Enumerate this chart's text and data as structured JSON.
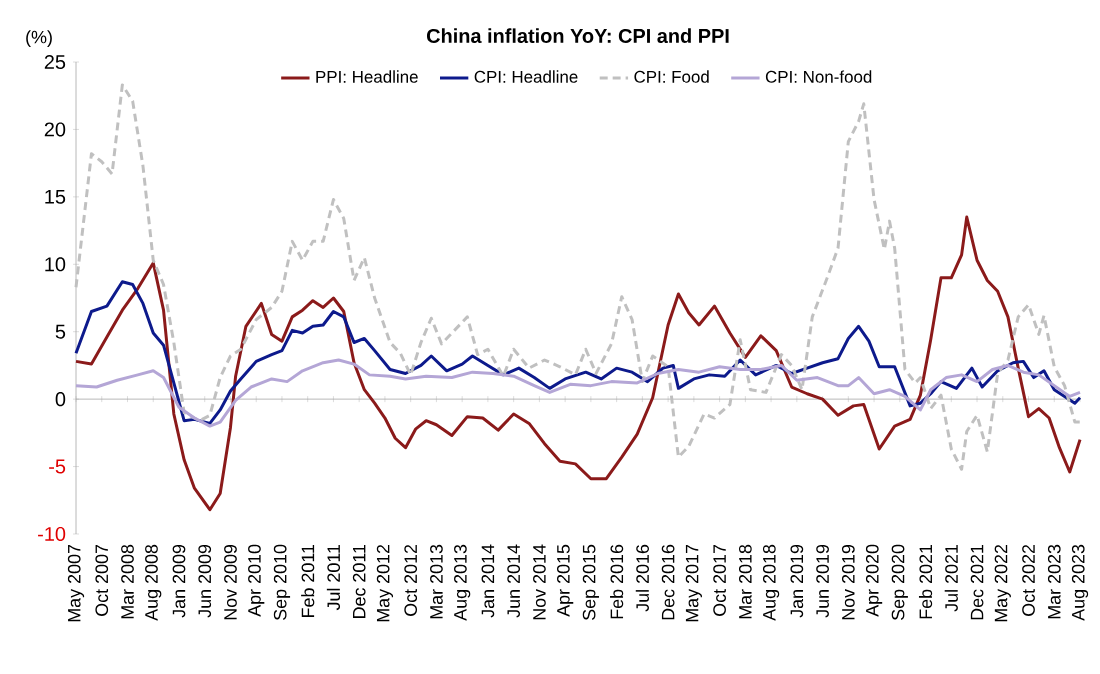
{
  "chart_data": {
    "type": "line",
    "title": "China inflation YoY: CPI and PPI",
    "ylabel": "(%)",
    "xlim": [
      "2007-05",
      "2023-08"
    ],
    "xticks": [
      {
        "value": "2007-05",
        "label": "May 2007"
      },
      {
        "value": "2007-10",
        "label": "Oct 2007"
      },
      {
        "value": "2008-03",
        "label": "Mar 2008"
      },
      {
        "value": "2008-08",
        "label": "Aug 2008"
      },
      {
        "value": "2009-01",
        "label": "Jan 2009"
      },
      {
        "value": "2009-06",
        "label": "Jun 2009"
      },
      {
        "value": "2009-11",
        "label": "Nov 2009"
      },
      {
        "value": "2010-04",
        "label": "Apr 2010"
      },
      {
        "value": "2010-09",
        "label": "Sep 2010"
      },
      {
        "value": "2011-02",
        "label": "Feb 2011"
      },
      {
        "value": "2011-07",
        "label": "Jul 2011"
      },
      {
        "value": "2011-12",
        "label": "Dec 2011"
      },
      {
        "value": "2012-05",
        "label": "May 2012"
      },
      {
        "value": "2012-10",
        "label": "Oct 2012"
      },
      {
        "value": "2013-03",
        "label": "Mar 2013"
      },
      {
        "value": "2013-08",
        "label": "Aug 2013"
      },
      {
        "value": "2014-01",
        "label": "Jan 2014"
      },
      {
        "value": "2014-06",
        "label": "Jun 2014"
      },
      {
        "value": "2014-11",
        "label": "Nov 2014"
      },
      {
        "value": "2015-04",
        "label": "Apr 2015"
      },
      {
        "value": "2015-09",
        "label": "Sep 2015"
      },
      {
        "value": "2016-02",
        "label": "Feb 2016"
      },
      {
        "value": "2016-07",
        "label": "Jul 2016"
      },
      {
        "value": "2016-12",
        "label": "Dec 2016"
      },
      {
        "value": "2017-05",
        "label": "May 2017"
      },
      {
        "value": "2017-10",
        "label": "Oct 2017"
      },
      {
        "value": "2018-03",
        "label": "Mar 2018"
      },
      {
        "value": "2018-08",
        "label": "Aug 2018"
      },
      {
        "value": "2019-01",
        "label": "Jan 2019"
      },
      {
        "value": "2019-06",
        "label": "Jun 2019"
      },
      {
        "value": "2019-11",
        "label": "Nov 2019"
      },
      {
        "value": "2020-04",
        "label": "Apr 2020"
      },
      {
        "value": "2020-09",
        "label": "Sep 2020"
      },
      {
        "value": "2021-02",
        "label": "Feb 2021"
      },
      {
        "value": "2021-07",
        "label": "Jul 2021"
      },
      {
        "value": "2021-12",
        "label": "Dec 2021"
      },
      {
        "value": "2022-05",
        "label": "May 2022"
      },
      {
        "value": "2022-10",
        "label": "Oct 2022"
      },
      {
        "value": "2023-03",
        "label": "Mar 2023"
      },
      {
        "value": "2023-08",
        "label": "Aug 2023"
      }
    ],
    "ylim": [
      -10,
      25
    ],
    "yticks": [
      -10,
      -5,
      0,
      5,
      10,
      15,
      20,
      25
    ],
    "legend": "top",
    "series": [
      {
        "name": "PPI: Headline",
        "color": "#8b1a1a",
        "x": [
          "2007-05",
          "2007-08",
          "2007-11",
          "2008-02",
          "2008-05",
          "2008-08",
          "2008-10",
          "2008-12",
          "2009-02",
          "2009-04",
          "2009-07",
          "2009-09",
          "2009-11",
          "2009-12",
          "2010-02",
          "2010-05",
          "2010-07",
          "2010-09",
          "2010-11",
          "2011-01",
          "2011-03",
          "2011-05",
          "2011-07",
          "2011-09",
          "2011-11",
          "2012-01",
          "2012-03",
          "2012-05",
          "2012-07",
          "2012-09",
          "2012-11",
          "2013-01",
          "2013-03",
          "2013-06",
          "2013-09",
          "2013-12",
          "2014-03",
          "2014-06",
          "2014-09",
          "2014-12",
          "2015-03",
          "2015-06",
          "2015-09",
          "2015-12",
          "2016-03",
          "2016-06",
          "2016-09",
          "2016-12",
          "2017-02",
          "2017-04",
          "2017-06",
          "2017-09",
          "2017-12",
          "2018-03",
          "2018-06",
          "2018-09",
          "2018-12",
          "2019-03",
          "2019-06",
          "2019-09",
          "2019-12",
          "2020-02",
          "2020-05",
          "2020-08",
          "2020-11",
          "2021-01",
          "2021-03",
          "2021-05",
          "2021-07",
          "2021-09",
          "2021-10",
          "2021-12",
          "2022-02",
          "2022-04",
          "2022-06",
          "2022-08",
          "2022-10",
          "2022-12",
          "2023-02",
          "2023-04",
          "2023-06",
          "2023-08"
        ],
        "values": [
          2.8,
          2.6,
          4.6,
          6.6,
          8.2,
          10.1,
          6.6,
          -1.1,
          -4.5,
          -6.6,
          -8.2,
          -7.0,
          -2.1,
          1.7,
          5.4,
          7.1,
          4.8,
          4.3,
          6.1,
          6.6,
          7.3,
          6.8,
          7.5,
          6.5,
          2.7,
          0.7,
          -0.3,
          -1.4,
          -2.9,
          -3.6,
          -2.2,
          -1.6,
          -1.9,
          -2.7,
          -1.3,
          -1.4,
          -2.3,
          -1.1,
          -1.8,
          -3.3,
          -4.6,
          -4.8,
          -5.9,
          -5.9,
          -4.3,
          -2.6,
          0.1,
          5.5,
          7.8,
          6.4,
          5.5,
          6.9,
          4.9,
          3.1,
          4.7,
          3.6,
          0.9,
          0.4,
          0.0,
          -1.2,
          -0.5,
          -0.4,
          -3.7,
          -2.0,
          -1.5,
          0.3,
          4.4,
          9.0,
          9.0,
          10.7,
          13.5,
          10.3,
          8.8,
          8.0,
          6.1,
          2.3,
          -1.3,
          -0.7,
          -1.4,
          -3.6,
          -5.4,
          -3.0
        ]
      },
      {
        "name": "CPI: Headline",
        "color": "#0d1a8c",
        "x": [
          "2007-05",
          "2007-08",
          "2007-11",
          "2008-02",
          "2008-04",
          "2008-06",
          "2008-08",
          "2008-10",
          "2008-12",
          "2009-02",
          "2009-04",
          "2009-07",
          "2009-09",
          "2009-11",
          "2010-01",
          "2010-04",
          "2010-07",
          "2010-09",
          "2010-11",
          "2011-01",
          "2011-03",
          "2011-05",
          "2011-07",
          "2011-09",
          "2011-11",
          "2012-01",
          "2012-03",
          "2012-06",
          "2012-09",
          "2012-12",
          "2013-02",
          "2013-05",
          "2013-08",
          "2013-10",
          "2014-01",
          "2014-04",
          "2014-07",
          "2014-10",
          "2015-01",
          "2015-04",
          "2015-08",
          "2015-11",
          "2016-02",
          "2016-05",
          "2016-08",
          "2016-11",
          "2017-01",
          "2017-02",
          "2017-05",
          "2017-08",
          "2017-11",
          "2018-02",
          "2018-05",
          "2018-09",
          "2018-12",
          "2019-03",
          "2019-06",
          "2019-09",
          "2019-11",
          "2020-01",
          "2020-03",
          "2020-05",
          "2020-08",
          "2020-11",
          "2021-01",
          "2021-03",
          "2021-05",
          "2021-08",
          "2021-11",
          "2022-01",
          "2022-04",
          "2022-07",
          "2022-09",
          "2022-11",
          "2023-01",
          "2023-03",
          "2023-05",
          "2023-07",
          "2023-08"
        ],
        "values": [
          3.4,
          6.5,
          6.9,
          8.7,
          8.5,
          7.1,
          4.9,
          4.0,
          1.2,
          -1.6,
          -1.5,
          -1.8,
          -0.8,
          0.6,
          1.5,
          2.8,
          3.3,
          3.6,
          5.1,
          4.9,
          5.4,
          5.5,
          6.5,
          6.1,
          4.2,
          4.5,
          3.6,
          2.2,
          1.9,
          2.5,
          3.2,
          2.1,
          2.6,
          3.2,
          2.5,
          1.8,
          2.3,
          1.6,
          0.8,
          1.5,
          2.0,
          1.5,
          2.3,
          2.0,
          1.3,
          2.3,
          2.5,
          0.8,
          1.5,
          1.8,
          1.7,
          2.9,
          1.8,
          2.5,
          1.9,
          2.3,
          2.7,
          3.0,
          4.5,
          5.4,
          4.3,
          2.4,
          2.4,
          -0.5,
          -0.3,
          0.4,
          1.3,
          0.8,
          2.3,
          0.9,
          2.1,
          2.7,
          2.8,
          1.6,
          2.1,
          0.7,
          0.2,
          -0.3,
          0.1
        ]
      },
      {
        "name": "CPI: Food",
        "color": "#c0c0c0",
        "line_style": "dashed",
        "x": [
          "2007-05",
          "2007-08",
          "2007-10",
          "2007-12",
          "2008-02",
          "2008-04",
          "2008-06",
          "2008-08",
          "2008-10",
          "2008-12",
          "2009-02",
          "2009-05",
          "2009-07",
          "2009-09",
          "2009-11",
          "2010-01",
          "2010-04",
          "2010-07",
          "2010-09",
          "2010-11",
          "2011-01",
          "2011-03",
          "2011-05",
          "2011-07",
          "2011-09",
          "2011-11",
          "2012-01",
          "2012-03",
          "2012-06",
          "2012-08",
          "2012-10",
          "2012-12",
          "2013-02",
          "2013-04",
          "2013-06",
          "2013-09",
          "2013-11",
          "2014-01",
          "2014-04",
          "2014-06",
          "2014-09",
          "2014-12",
          "2015-03",
          "2015-06",
          "2015-08",
          "2015-10",
          "2016-01",
          "2016-03",
          "2016-05",
          "2016-07",
          "2016-09",
          "2016-12",
          "2017-02",
          "2017-04",
          "2017-07",
          "2017-09",
          "2017-12",
          "2018-02",
          "2018-04",
          "2018-07",
          "2018-10",
          "2018-12",
          "2019-02",
          "2019-04",
          "2019-07",
          "2019-09",
          "2019-11",
          "2020-01",
          "2020-02",
          "2020-04",
          "2020-06",
          "2020-07",
          "2020-08",
          "2020-10",
          "2020-12",
          "2021-01",
          "2021-03",
          "2021-05",
          "2021-07",
          "2021-09",
          "2021-10",
          "2021-12",
          "2022-02",
          "2022-04",
          "2022-06",
          "2022-08",
          "2022-10",
          "2022-12",
          "2023-01",
          "2023-03",
          "2023-05",
          "2023-07",
          "2023-08"
        ],
        "values": [
          8.3,
          18.2,
          17.6,
          16.7,
          23.3,
          22.1,
          17.3,
          10.3,
          8.5,
          4.2,
          -1.0,
          -1.6,
          -1.2,
          1.6,
          3.2,
          3.7,
          5.9,
          6.8,
          8.0,
          11.7,
          10.3,
          11.7,
          11.7,
          14.8,
          13.4,
          8.8,
          10.5,
          7.5,
          4.2,
          3.4,
          1.8,
          4.2,
          6.0,
          4.1,
          4.9,
          6.1,
          3.3,
          3.7,
          1.7,
          3.7,
          2.3,
          2.9,
          2.4,
          1.8,
          3.7,
          1.9,
          4.1,
          7.6,
          5.9,
          1.3,
          3.2,
          2.4,
          -4.3,
          -3.5,
          -1.1,
          -1.4,
          -0.4,
          4.4,
          0.7,
          0.5,
          3.3,
          2.5,
          0.7,
          6.1,
          9.1,
          11.2,
          19.1,
          20.6,
          21.9,
          14.8,
          11.1,
          13.2,
          11.2,
          2.2,
          1.2,
          1.6,
          -0.7,
          0.3,
          -3.7,
          -5.2,
          -2.4,
          -1.2,
          -3.9,
          1.9,
          2.9,
          6.1,
          7.0,
          4.8,
          6.2,
          2.4,
          1.0,
          -1.7,
          -1.7
        ]
      },
      {
        "name": "CPI: Non-food",
        "color": "#b4a6d6",
        "x": [
          "2007-05",
          "2007-09",
          "2008-01",
          "2008-05",
          "2008-08",
          "2008-10",
          "2009-01",
          "2009-04",
          "2009-07",
          "2009-09",
          "2009-12",
          "2010-03",
          "2010-07",
          "2010-10",
          "2011-01",
          "2011-05",
          "2011-08",
          "2011-11",
          "2012-02",
          "2012-06",
          "2012-09",
          "2013-01",
          "2013-06",
          "2013-10",
          "2014-02",
          "2014-06",
          "2014-10",
          "2015-01",
          "2015-05",
          "2015-09",
          "2016-01",
          "2016-06",
          "2016-10",
          "2017-02",
          "2017-06",
          "2017-10",
          "2018-02",
          "2018-06",
          "2018-10",
          "2019-01",
          "2019-05",
          "2019-09",
          "2019-11",
          "2020-01",
          "2020-04",
          "2020-07",
          "2020-10",
          "2021-01",
          "2021-03",
          "2021-06",
          "2021-09",
          "2021-12",
          "2022-03",
          "2022-06",
          "2022-09",
          "2022-12",
          "2023-03",
          "2023-06",
          "2023-08"
        ],
        "values": [
          1.0,
          0.9,
          1.4,
          1.8,
          2.1,
          1.6,
          -0.6,
          -1.4,
          -2.0,
          -1.7,
          -0.1,
          0.9,
          1.5,
          1.3,
          2.1,
          2.7,
          2.9,
          2.6,
          1.8,
          1.7,
          1.5,
          1.7,
          1.6,
          2.0,
          1.9,
          1.7,
          1.0,
          0.5,
          1.1,
          1.0,
          1.3,
          1.2,
          1.9,
          2.2,
          2.0,
          2.4,
          2.2,
          2.2,
          2.5,
          1.4,
          1.6,
          1.0,
          1.0,
          1.6,
          0.4,
          0.7,
          0.2,
          -0.8,
          0.7,
          1.6,
          1.8,
          1.3,
          2.2,
          2.5,
          2.0,
          1.8,
          1.0,
          0.2,
          0.5
        ]
      }
    ]
  }
}
